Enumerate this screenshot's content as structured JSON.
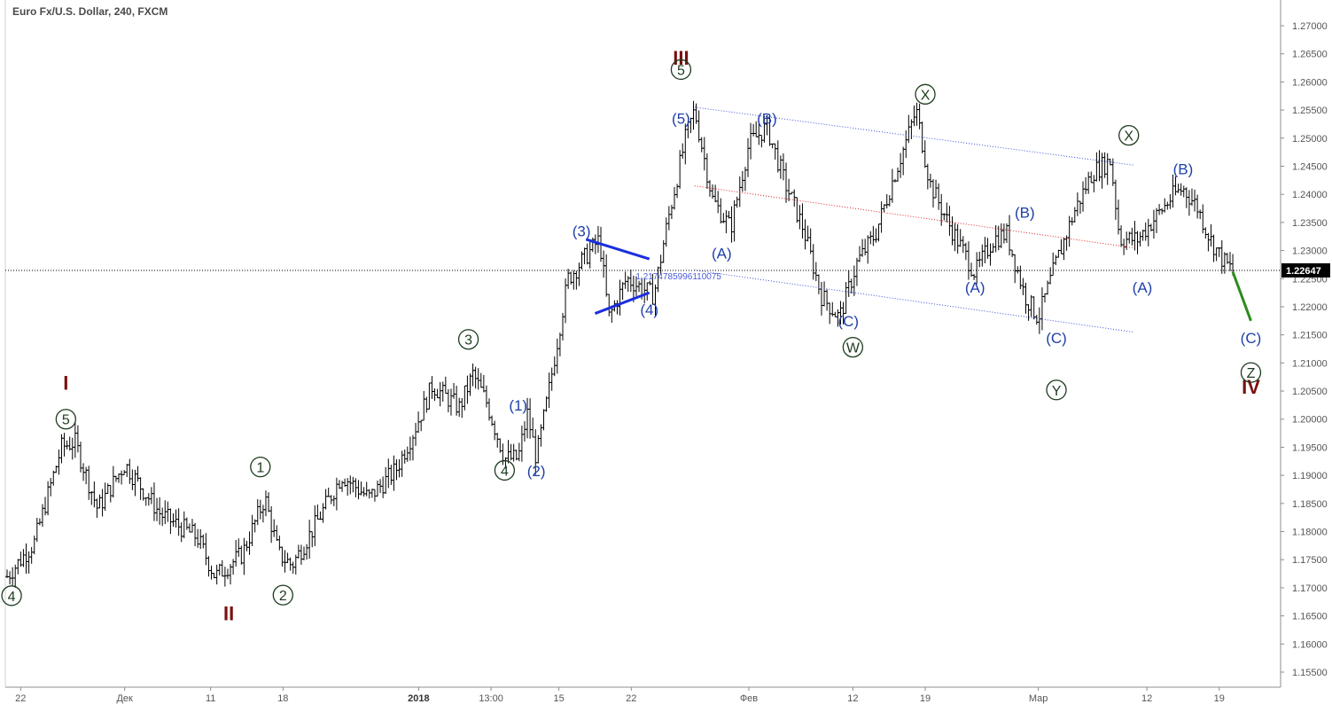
{
  "header": {
    "title": "Euro Fx/U.S. Dollar, 240, FXCM"
  },
  "chart_data": {
    "type": "candlestick",
    "title": "Euro Fx/U.S. Dollar, 240, FXCM",
    "ylim": [
      1.152,
      1.275
    ],
    "y_ticks": [
      1.155,
      1.16,
      1.165,
      1.17,
      1.175,
      1.18,
      1.185,
      1.19,
      1.195,
      1.2,
      1.205,
      1.21,
      1.215,
      1.22,
      1.225,
      1.23,
      1.235,
      1.24,
      1.245,
      1.25,
      1.255,
      1.26,
      1.265,
      1.27
    ],
    "y_tick_labels": [
      "1.15500",
      "1.16000",
      "1.16500",
      "1.17000",
      "1.17500",
      "1.18000",
      "1.18500",
      "1.19000",
      "1.19500",
      "1.20000",
      "1.20500",
      "1.21000",
      "1.21500",
      "1.22000",
      "1.22500",
      "1.23000",
      "1.23500",
      "1.24000",
      "1.24500",
      "1.25000",
      "1.25500",
      "1.26000",
      "1.26500",
      "1.27000"
    ],
    "x_range": [
      0,
      140
    ],
    "x_ticks": [
      {
        "t": 1.5,
        "label": "22",
        "bold": false
      },
      {
        "t": 13,
        "label": "Дек",
        "bold": false
      },
      {
        "t": 22.5,
        "label": "11",
        "bold": false
      },
      {
        "t": 30.5,
        "label": "18",
        "bold": false
      },
      {
        "t": 45.5,
        "label": "2018",
        "bold": true
      },
      {
        "t": 53.5,
        "label": "13:00",
        "bold": false
      },
      {
        "t": 61,
        "label": "15",
        "bold": false
      },
      {
        "t": 69,
        "label": "22",
        "bold": false
      },
      {
        "t": 82,
        "label": "Фев",
        "bold": false
      },
      {
        "t": 93.5,
        "label": "12",
        "bold": false
      },
      {
        "t": 101.5,
        "label": "19",
        "bold": false
      },
      {
        "t": 114,
        "label": "Мар",
        "bold": false
      },
      {
        "t": 126,
        "label": "12",
        "bold": false
      },
      {
        "t": 134,
        "label": "19",
        "bold": false
      }
    ],
    "last_price": 1.22647,
    "last_price_label": "1.22647",
    "price_path": [
      [
        0,
        1.172
      ],
      [
        3,
        1.178
      ],
      [
        6,
        1.195
      ],
      [
        7.5,
        1.196
      ],
      [
        10,
        1.184
      ],
      [
        13,
        1.192
      ],
      [
        17,
        1.183
      ],
      [
        21,
        1.179
      ],
      [
        23,
        1.172
      ],
      [
        26,
        1.176
      ],
      [
        28.5,
        1.186
      ],
      [
        30,
        1.176
      ],
      [
        31.5,
        1.174
      ],
      [
        34,
        1.181
      ],
      [
        37,
        1.19
      ],
      [
        40,
        1.186
      ],
      [
        43,
        1.191
      ],
      [
        45,
        1.198
      ],
      [
        47,
        1.206
      ],
      [
        50,
        1.202
      ],
      [
        51.5,
        1.208
      ],
      [
        53,
        1.203
      ],
      [
        55,
        1.193
      ],
      [
        56.5,
        1.193
      ],
      [
        57.5,
        1.201
      ],
      [
        58.5,
        1.193
      ],
      [
        60,
        1.206
      ],
      [
        62,
        1.225
      ],
      [
        64,
        1.229
      ],
      [
        65.5,
        1.232
      ],
      [
        66.5,
        1.218
      ],
      [
        68.5,
        1.225
      ],
      [
        71.5,
        1.222
      ],
      [
        73,
        1.235
      ],
      [
        75,
        1.25
      ],
      [
        76,
        1.255
      ],
      [
        78,
        1.239
      ],
      [
        80,
        1.234
      ],
      [
        82,
        1.249
      ],
      [
        84,
        1.252
      ],
      [
        86,
        1.242
      ],
      [
        88,
        1.234
      ],
      [
        90,
        1.222
      ],
      [
        92,
        1.218
      ],
      [
        94,
        1.228
      ],
      [
        96,
        1.233
      ],
      [
        98,
        1.243
      ],
      [
        99.5,
        1.25
      ],
      [
        100.5,
        1.255
      ],
      [
        102,
        1.242
      ],
      [
        104,
        1.235
      ],
      [
        107,
        1.226
      ],
      [
        109,
        1.232
      ],
      [
        110.5,
        1.233
      ],
      [
        112.5,
        1.222
      ],
      [
        114,
        1.218
      ],
      [
        116,
        1.228
      ],
      [
        118,
        1.237
      ],
      [
        120,
        1.244
      ],
      [
        122,
        1.246
      ],
      [
        123,
        1.232
      ],
      [
        125,
        1.232
      ],
      [
        127,
        1.236
      ],
      [
        129,
        1.24
      ],
      [
        130,
        1.241
      ],
      [
        131.5,
        1.238
      ],
      [
        133,
        1.232
      ],
      [
        134.5,
        1.228
      ],
      [
        135.5,
        1.2265
      ]
    ],
    "channel": {
      "upper": [
        [
          76,
          1.2555
        ],
        [
          124.5,
          1.2452
        ]
      ],
      "middle": [
        [
          76,
          1.2415
        ],
        [
          124.5,
          1.2305
        ]
      ],
      "lower": [
        [
          76,
          1.2265
        ],
        [
          124.5,
          1.2155
        ]
      ]
    },
    "triangle": {
      "upper": [
        [
          64,
          1.232
        ],
        [
          71,
          1.2285
        ]
      ],
      "lower": [
        [
          65,
          1.2188
        ],
        [
          71,
          1.2225
        ]
      ]
    },
    "projection": [
      [
        135.5,
        1.2262
      ],
      [
        137.5,
        1.2175
      ]
    ],
    "fib_label": {
      "t": 69.5,
      "price": 1.2255,
      "text": "1.2174785996110075"
    },
    "wave_labels": [
      {
        "text": "I",
        "t": 6.5,
        "price": 1.2065,
        "kind": "roman"
      },
      {
        "text": "II",
        "t": 24.5,
        "price": 1.1655,
        "kind": "roman"
      },
      {
        "text": "III",
        "t": 74.5,
        "price": 1.2643,
        "kind": "roman"
      },
      {
        "text": "IV",
        "t": 137.5,
        "price": 1.2058,
        "kind": "roman"
      },
      {
        "text": "5",
        "t": 6.5,
        "price": 1.2,
        "kind": "circle"
      },
      {
        "text": "4",
        "t": 0.5,
        "price": 1.1686,
        "kind": "circle"
      },
      {
        "text": "1",
        "t": 28,
        "price": 1.1915,
        "kind": "circle"
      },
      {
        "text": "2",
        "t": 30.5,
        "price": 1.1687,
        "kind": "circle"
      },
      {
        "text": "3",
        "t": 51,
        "price": 1.2142,
        "kind": "circle"
      },
      {
        "text": "4",
        "t": 55,
        "price": 1.1909,
        "kind": "circle"
      },
      {
        "text": "5",
        "t": 74.5,
        "price": 1.2622,
        "kind": "circle"
      },
      {
        "text": "W",
        "t": 93.5,
        "price": 1.2128,
        "kind": "circle"
      },
      {
        "text": "X",
        "t": 101.5,
        "price": 1.2578,
        "kind": "circle"
      },
      {
        "text": "Y",
        "t": 116,
        "price": 1.2052,
        "kind": "circle"
      },
      {
        "text": "X",
        "t": 124,
        "price": 1.2505,
        "kind": "circle"
      },
      {
        "text": "Z",
        "t": 137.5,
        "price": 1.2083,
        "kind": "circle"
      },
      {
        "text": "(1)",
        "t": 56.5,
        "price": 1.2025,
        "kind": "paren"
      },
      {
        "text": "(2)",
        "t": 58.5,
        "price": 1.1908,
        "kind": "paren"
      },
      {
        "text": "(3)",
        "t": 63.5,
        "price": 1.2335,
        "kind": "paren"
      },
      {
        "text": "(4)",
        "t": 71,
        "price": 1.2195,
        "kind": "paren"
      },
      {
        "text": "(5)",
        "t": 74.5,
        "price": 1.2535,
        "kind": "paren"
      },
      {
        "text": "(A)",
        "t": 79,
        "price": 1.2295,
        "kind": "paren"
      },
      {
        "text": "(B)",
        "t": 84,
        "price": 1.2535,
        "kind": "paren"
      },
      {
        "text": "(C)",
        "t": 93,
        "price": 1.2175,
        "kind": "paren"
      },
      {
        "text": "(A)",
        "t": 107,
        "price": 1.2235,
        "kind": "paren"
      },
      {
        "text": "(B)",
        "t": 112.5,
        "price": 1.2368,
        "kind": "paren"
      },
      {
        "text": "(C)",
        "t": 116,
        "price": 1.2145,
        "kind": "paren"
      },
      {
        "text": "(A)",
        "t": 125.5,
        "price": 1.2235,
        "kind": "paren"
      },
      {
        "text": "(B)",
        "t": 130,
        "price": 1.2445,
        "kind": "paren"
      },
      {
        "text": "(C)",
        "t": 137.5,
        "price": 1.2145,
        "kind": "paren"
      }
    ]
  },
  "colors": {
    "candle": "#000000",
    "wave_blue": "#1f3fa8",
    "roman": "#7a1010",
    "circle": "#1d3b1d",
    "channel": "#3a50d8",
    "midline": "#e02020",
    "projection": "#2e8b1e",
    "axis_text": "#555555",
    "price_badge": "#000000"
  }
}
